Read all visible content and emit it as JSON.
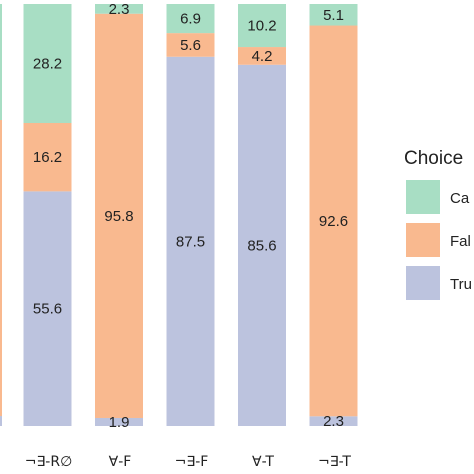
{
  "chart_data": {
    "type": "bar",
    "stacked": true,
    "normalized": true,
    "categories": [
      "",
      "¬∃-R∅",
      "∀-F",
      "¬∃-F",
      "∀-T",
      "¬∃-T"
    ],
    "series": [
      {
        "name": "Tru",
        "color": "#bcc3de",
        "values": [
          null,
          55.6,
          1.9,
          87.5,
          85.6,
          2.3
        ]
      },
      {
        "name": "Fal",
        "color": "#f9b98f",
        "values": [
          null,
          16.2,
          95.8,
          5.6,
          4.2,
          92.6
        ]
      },
      {
        "name": "Ca",
        "color": "#a8dec4",
        "values": [
          null,
          28.2,
          2.3,
          6.9,
          10.2,
          5.1
        ]
      }
    ],
    "value_labels": [
      [
        "",
        "",
        ""
      ],
      [
        "55.6",
        "16.2",
        "28.2"
      ],
      [
        "1.9",
        "95.8",
        "2.3"
      ],
      [
        "87.5",
        "5.6",
        "6.9"
      ],
      [
        "85.6",
        "4.2",
        "10.2"
      ],
      [
        "2.3",
        "92.6",
        "5.1"
      ]
    ],
    "ylim": [
      0,
      100
    ],
    "legend": {
      "title": "Choice",
      "placement": "right",
      "items": [
        "Ca",
        "Fal",
        "Tru"
      ]
    }
  }
}
